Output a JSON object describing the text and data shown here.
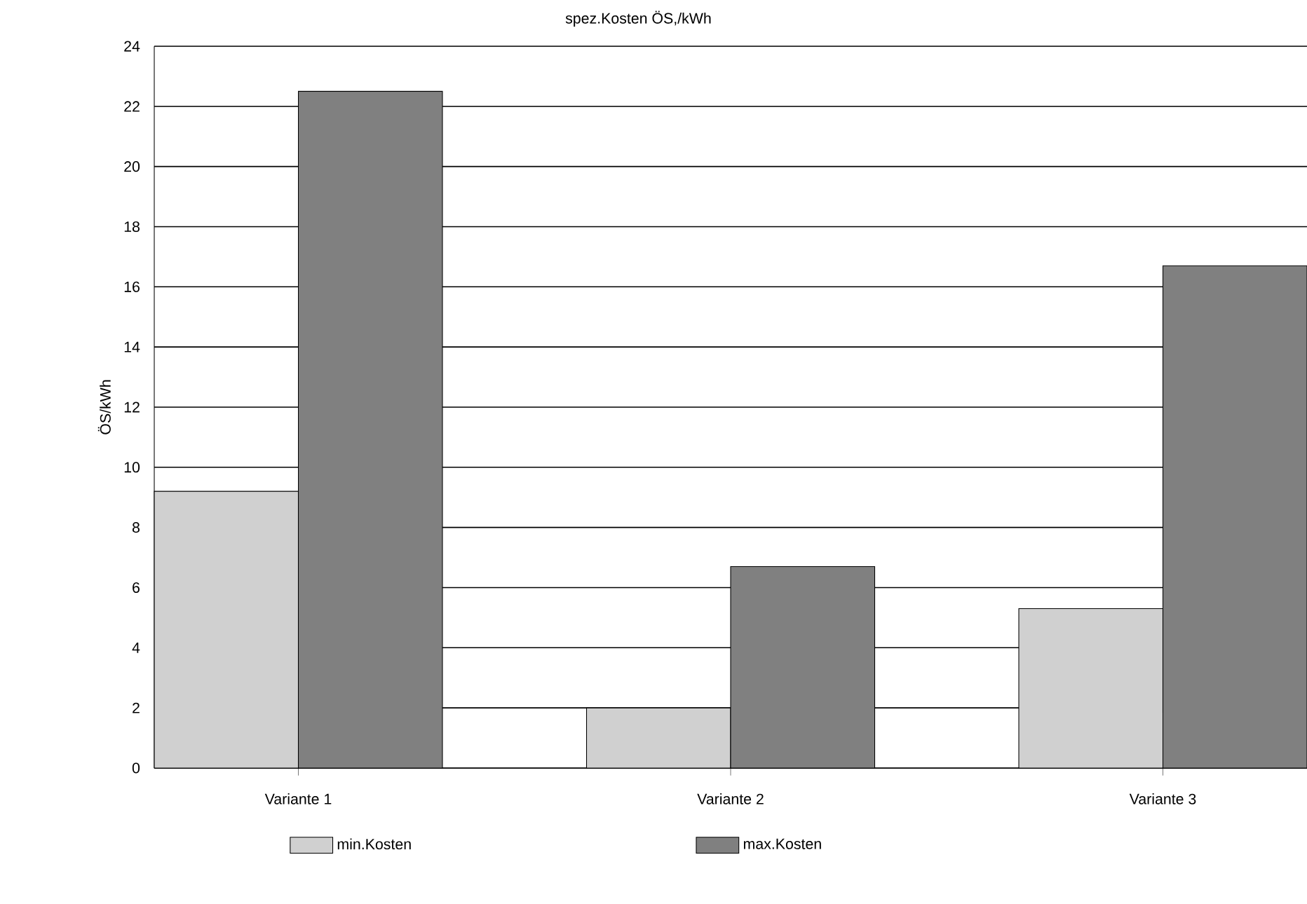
{
  "chart_data": {
    "type": "bar",
    "title": "spez.Kosten ÖS,/kWh",
    "ylabel": "ÖS/kWh",
    "categories": [
      "Variante 1",
      "Variante 2",
      "Variante 3"
    ],
    "series": [
      {
        "name": "min.Kosten",
        "color": "#d0d0d0",
        "values": [
          9.2,
          2.0,
          5.3
        ]
      },
      {
        "name": "max.Kosten",
        "color": "#808080",
        "values": [
          22.5,
          6.7,
          16.7
        ]
      }
    ],
    "ylim": [
      0,
      24
    ],
    "yticks": [
      0,
      2,
      4,
      6,
      8,
      10,
      12,
      14,
      16,
      18,
      20,
      22,
      24
    ],
    "grid": "y",
    "legend": "bottom"
  }
}
